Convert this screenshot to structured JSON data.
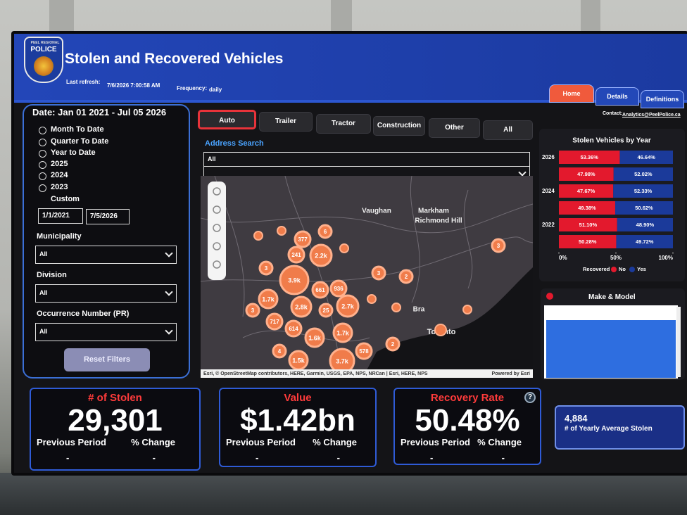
{
  "header": {
    "logo": [
      "PEEL REGIONAL",
      "POLICE"
    ],
    "title": "Stolen and Recovered Vehicles",
    "last_refresh_label": "Last refresh:",
    "last_refresh": "7/6/2026 7:00:58 AM",
    "frequency_label": "Frequency:",
    "frequency": "daily",
    "tabs": [
      "Home",
      "Details",
      "Definitions"
    ],
    "contact_label": "Contact:",
    "contact": "Analytics@PeelPolice.ca"
  },
  "filters": {
    "date_range": "Date: Jan 01 2021 - Jul 05 2026",
    "period_options": [
      "Month To Date",
      "Quarter To Date",
      "Year to Date",
      "2025",
      "2024",
      "2023"
    ],
    "custom_label": "Custom",
    "custom_start": "1/1/2021",
    "custom_end": "7/5/2026",
    "dropdowns": [
      {
        "label": "Municipality",
        "value": "All"
      },
      {
        "label": "Division",
        "value": "All"
      },
      {
        "label": "Occurrence Number (PR)",
        "value": "All"
      }
    ],
    "reset_button": "Reset Filters"
  },
  "vehicle_types": [
    "Auto",
    "Trailer",
    "Tractor",
    "Construction",
    "Other",
    "All"
  ],
  "address_search": {
    "label": "Address Search",
    "value": "All"
  },
  "map": {
    "places": [
      "Vaughan",
      "Markham",
      "Richmond Hill",
      "Bra",
      "Toronto"
    ],
    "clusters": [
      "377",
      "6",
      "241",
      "2.2k",
      "3",
      "3.9k",
      "661",
      "936",
      "3",
      "2",
      "3",
      "1.7k",
      "2.8k",
      "25",
      "2.7k",
      "3",
      "717",
      "614",
      "1.6k",
      "1.7k",
      "2",
      "4",
      "1.5k",
      "578",
      "3.7k"
    ],
    "attribution": "Esri, © OpenStreetMap contributors, HERE, Garmin, USGS, EPA, NPS, NRCan | Esri, HERE, NPS",
    "powered_by": "Powered by Esri"
  },
  "stolen_by_year": {
    "type": "bar",
    "orientation": "horizontal",
    "stacked": true,
    "title": "Stolen Vehicles by Year",
    "categories": [
      "2026",
      null,
      "2024",
      null,
      "2022",
      null
    ],
    "series": [
      {
        "name": "No",
        "color": "#e3192d",
        "values": [
          53.36,
          47.98,
          47.67,
          49.38,
          51.1,
          50.28
        ],
        "value_labels": [
          "53.36%",
          "47.98%",
          "47.67%",
          "49.38%",
          "51.10%",
          "50.28%"
        ]
      },
      {
        "name": "Yes",
        "color": "#1b3a9a",
        "values": [
          46.64,
          52.02,
          52.33,
          50.62,
          48.9,
          49.72
        ],
        "value_labels": [
          "46.64%",
          "52.02%",
          "52.33%",
          "50.62%",
          "48.90%",
          "49.72%"
        ]
      }
    ],
    "xlim": [
      0,
      100
    ],
    "xticks": [
      {
        "value": 0,
        "label": "0%"
      },
      {
        "value": 50,
        "label": "50%"
      },
      {
        "value": 100,
        "label": "100%"
      }
    ],
    "legend_title": "Recovered"
  },
  "make_model": {
    "title": "Make & Model"
  },
  "kpis": [
    {
      "title": "# of Stolen",
      "value": "29,301",
      "previous_label": "Previous Period",
      "change_label": "% Change",
      "previous": "-",
      "change": "-"
    },
    {
      "title": "Value",
      "value": "$1.42bn",
      "previous_label": "Previous Period",
      "change_label": "% Change",
      "previous": "-",
      "change": "-"
    },
    {
      "title": "Recovery Rate",
      "value": "50.48%",
      "previous_label": "Previous Period",
      "change_label": "% Change",
      "previous": "-",
      "change": "-",
      "help": "?"
    }
  ],
  "average": {
    "value": "4,884",
    "label": "# of Yearly Average Stolen"
  }
}
